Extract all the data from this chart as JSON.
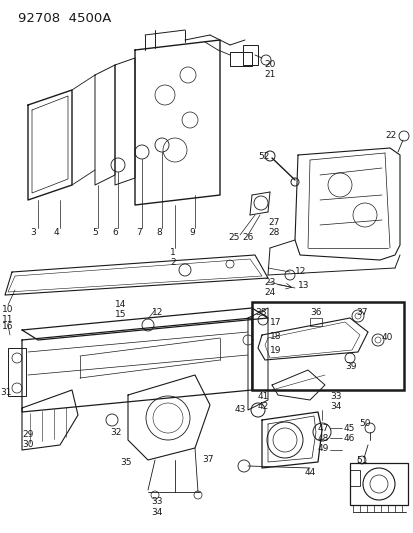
{
  "title": "92708  4500A",
  "bg_color": "#ffffff",
  "line_color": "#1a1a1a",
  "title_fontsize": 10,
  "label_fontsize": 6.5,
  "fig_width": 4.14,
  "fig_height": 5.33,
  "dpi": 100
}
